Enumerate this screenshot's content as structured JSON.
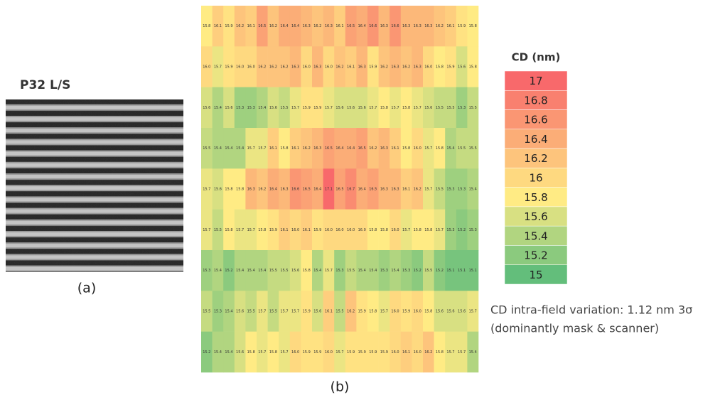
{
  "panel_a": {
    "title": "P32  L/S",
    "caption": "(a)"
  },
  "heatmap": {
    "caption": "(b)",
    "rows": [
      [
        "15.8",
        "16.1",
        "15.9",
        "16.2",
        "16.1",
        "16.5",
        "16.2",
        "16.4",
        "16.4",
        "16.3",
        "16.2",
        "16.3",
        "16.1",
        "16.5",
        "16.4",
        "16.6",
        "16.3",
        "16.6",
        "16.3",
        "16.3",
        "16.3",
        "16.2",
        "16.1",
        "15.9",
        "15.8"
      ],
      [
        "16.0",
        "15.7",
        "15.9",
        "16.0",
        "16.0",
        "16.2",
        "16.2",
        "16.2",
        "16.3",
        "16.0",
        "16.3",
        "16.0",
        "16.2",
        "16.1",
        "16.3",
        "15.9",
        "16.2",
        "16.3",
        "16.2",
        "16.3",
        "16.0",
        "15.8",
        "15.9",
        "15.6",
        "15.8"
      ],
      [
        "15.6",
        "15.4",
        "15.6",
        "15.3",
        "15.3",
        "15.4",
        "15.6",
        "15.5",
        "15.7",
        "15.9",
        "15.9",
        "15.7",
        "15.6",
        "15.6",
        "15.6",
        "15.7",
        "15.8",
        "15.7",
        "15.8",
        "15.7",
        "15.6",
        "15.5",
        "15.5",
        "15.3",
        "15.5"
      ],
      [
        "15.5",
        "15.4",
        "15.4",
        "15.4",
        "15.7",
        "15.7",
        "16.1",
        "15.8",
        "16.1",
        "16.2",
        "16.3",
        "16.5",
        "16.4",
        "16.4",
        "16.5",
        "16.2",
        "16.3",
        "16.1",
        "15.8",
        "16.0",
        "15.7",
        "15.8",
        "15.4",
        "15.5",
        "15.5"
      ],
      [
        "15.7",
        "15.6",
        "15.8",
        "15.8",
        "16.3",
        "16.2",
        "16.4",
        "16.3",
        "16.6",
        "16.5",
        "16.4",
        "17.1",
        "16.5",
        "16.7",
        "16.4",
        "16.5",
        "16.3",
        "16.3",
        "16.1",
        "16.2",
        "15.7",
        "15.5",
        "15.3",
        "15.3",
        "15.4"
      ],
      [
        "15.7",
        "15.5",
        "15.8",
        "15.7",
        "15.7",
        "15.8",
        "15.9",
        "16.1",
        "16.0",
        "16.1",
        "15.9",
        "16.0",
        "16.0",
        "16.0",
        "16.0",
        "15.8",
        "15.8",
        "16.0",
        "15.7",
        "15.8",
        "15.8",
        "15.7",
        "15.3",
        "15.2",
        "15.3"
      ],
      [
        "15.3",
        "15.4",
        "15.2",
        "15.4",
        "15.4",
        "15.4",
        "15.5",
        "15.5",
        "15.6",
        "15.8",
        "15.4",
        "15.7",
        "15.3",
        "15.5",
        "15.4",
        "15.4",
        "15.3",
        "15.4",
        "15.3",
        "15.2",
        "15.5",
        "15.2",
        "15.1",
        "15.1",
        "15.1"
      ],
      [
        "15.5",
        "15.3",
        "15.4",
        "15.6",
        "15.5",
        "15.7",
        "15.5",
        "15.7",
        "15.7",
        "15.9",
        "15.6",
        "16.1",
        "15.5",
        "16.2",
        "15.9",
        "15.8",
        "15.7",
        "16.0",
        "15.9",
        "16.0",
        "15.8",
        "15.6",
        "15.6",
        "15.6",
        "15.7"
      ],
      [
        "15.2",
        "15.4",
        "15.4",
        "15.6",
        "15.8",
        "15.7",
        "15.8",
        "15.7",
        "16.0",
        "15.9",
        "15.9",
        "16.0",
        "15.7",
        "15.9",
        "15.9",
        "15.9",
        "15.9",
        "16.0",
        "16.1",
        "16.0",
        "16.2",
        "15.8",
        "15.7",
        "15.7",
        "15.4"
      ]
    ]
  },
  "legend": {
    "title": "CD (nm)",
    "items": [
      {
        "label": 17,
        "color": "#f8696b"
      },
      {
        "label": 16.8,
        "color": "#f9806f"
      },
      {
        "label": 16.6,
        "color": "#fa9673"
      },
      {
        "label": 16.4,
        "color": "#fbad77"
      },
      {
        "label": 16.2,
        "color": "#fdc47c"
      },
      {
        "label": 16,
        "color": "#fed980"
      },
      {
        "label": 15.8,
        "color": "#ffeb84"
      },
      {
        "label": 15.6,
        "color": "#d8e082"
      },
      {
        "label": 15.4,
        "color": "#b1d580"
      },
      {
        "label": 15.2,
        "color": "#8bca7e"
      },
      {
        "label": 15,
        "color": "#63be7b"
      }
    ]
  },
  "note": [
    "CD intra-field variation: 1.12 nm 3σ",
    "(dominantly mask & scanner)"
  ]
}
